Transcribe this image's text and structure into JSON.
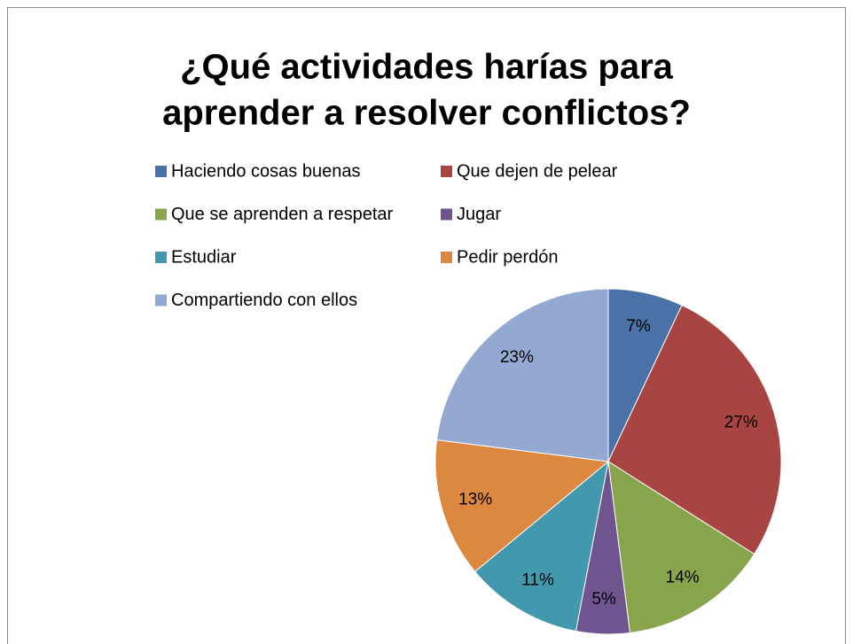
{
  "chart_data": {
    "type": "pie",
    "title": [
      "¿Qué actividades harías para",
      "aprender a resolver conflictos?"
    ],
    "categories": [
      "Haciendo cosas buenas",
      "Que dejen de pelear",
      "Que se aprenden a respetar",
      "Jugar",
      "Estudiar",
      "Pedir perdón",
      "Compartiendo  con ellos"
    ],
    "values": [
      7,
      27,
      14,
      5,
      11,
      13,
      23
    ],
    "value_labels": [
      "7%",
      "27%",
      "14%",
      "5%",
      "11%",
      "13%",
      "23%"
    ],
    "colors": [
      "#4a72a8",
      "#a84542",
      "#88a54b",
      "#6f5490",
      "#4298ad",
      "#dd8840",
      "#94a9d1"
    ],
    "legend": "top"
  }
}
